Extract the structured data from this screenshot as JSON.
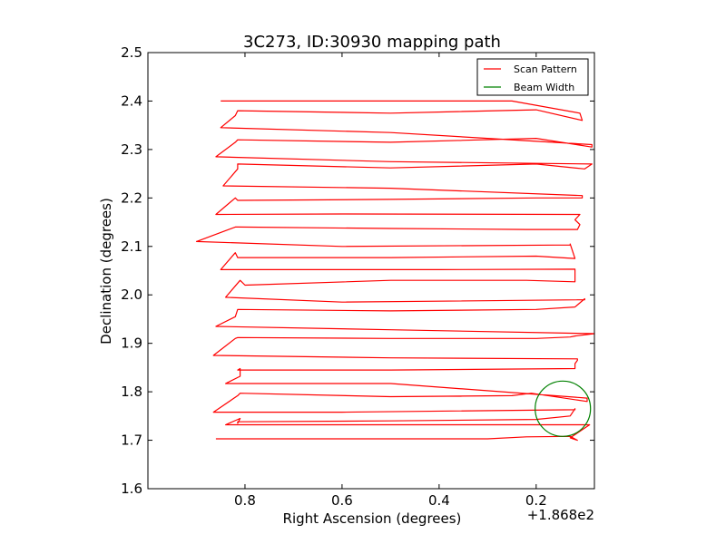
{
  "chart_data": {
    "type": "line",
    "title": "3C273, ID:30930 mapping path",
    "xlabel": "Right Ascension (degrees)",
    "ylabel": "Declination (degrees)",
    "x_offset_label": "+1.868e2",
    "xlim": [
      1.0,
      0.08
    ],
    "ylim": [
      1.6,
      2.5
    ],
    "x_inverted": true,
    "x_ticks": [
      0.8,
      0.6,
      0.4,
      0.2
    ],
    "x_tick_labels": [
      "0.8",
      "0.6",
      "0.4",
      "0.2"
    ],
    "y_ticks": [
      1.6,
      1.7,
      1.8,
      1.9,
      2.0,
      2.1,
      2.2,
      2.3,
      2.4,
      2.5
    ],
    "y_tick_labels": [
      "1.6",
      "1.7",
      "1.8",
      "1.9",
      "2.0",
      "2.1",
      "2.2",
      "2.3",
      "2.4",
      "2.5"
    ],
    "grid": false,
    "legend_position": "top-right",
    "series": [
      {
        "name": "Scan Pattern",
        "color": "#ff0000",
        "points": [
          [
            0.86,
            1.703
          ],
          [
            0.3,
            1.703
          ],
          [
            0.22,
            1.707
          ],
          [
            0.13,
            1.708
          ],
          [
            0.115,
            1.7
          ],
          [
            0.13,
            1.705
          ],
          [
            0.09,
            1.732
          ],
          [
            0.6,
            1.732
          ],
          [
            0.84,
            1.732
          ],
          [
            0.81,
            1.745
          ],
          [
            0.815,
            1.735
          ],
          [
            0.815,
            1.738
          ],
          [
            0.5,
            1.74
          ],
          [
            0.2,
            1.743
          ],
          [
            0.13,
            1.75
          ],
          [
            0.12,
            1.765
          ],
          [
            0.12,
            1.763
          ],
          [
            0.6,
            1.758
          ],
          [
            0.865,
            1.758
          ],
          [
            0.815,
            1.792
          ],
          [
            0.81,
            1.797
          ],
          [
            0.5,
            1.79
          ],
          [
            0.25,
            1.792
          ],
          [
            0.21,
            1.797
          ],
          [
            0.095,
            1.78
          ],
          [
            0.095,
            1.787
          ],
          [
            0.5,
            1.817
          ],
          [
            0.84,
            1.817
          ],
          [
            0.81,
            1.832
          ],
          [
            0.81,
            1.848
          ],
          [
            0.815,
            1.845
          ],
          [
            0.5,
            1.845
          ],
          [
            0.12,
            1.848
          ],
          [
            0.12,
            1.858
          ],
          [
            0.115,
            1.865
          ],
          [
            0.115,
            1.868
          ],
          [
            0.5,
            1.87
          ],
          [
            0.865,
            1.875
          ],
          [
            0.82,
            1.91
          ],
          [
            0.815,
            1.912
          ],
          [
            0.5,
            1.91
          ],
          [
            0.2,
            1.91
          ],
          [
            0.13,
            1.913
          ],
          [
            0.12,
            1.915
          ],
          [
            0.08,
            1.92
          ],
          [
            0.08,
            1.92
          ],
          [
            0.5,
            1.928
          ],
          [
            0.86,
            1.935
          ],
          [
            0.82,
            1.955
          ],
          [
            0.815,
            1.97
          ],
          [
            0.5,
            1.967
          ],
          [
            0.2,
            1.97
          ],
          [
            0.12,
            1.975
          ],
          [
            0.1,
            1.992
          ],
          [
            0.1,
            1.99
          ],
          [
            0.6,
            1.985
          ],
          [
            0.84,
            1.995
          ],
          [
            0.81,
            2.03
          ],
          [
            0.8,
            2.02
          ],
          [
            0.5,
            2.03
          ],
          [
            0.22,
            2.03
          ],
          [
            0.12,
            2.027
          ],
          [
            0.12,
            2.05
          ],
          [
            0.12,
            2.053
          ],
          [
            0.4,
            2.052
          ],
          [
            0.85,
            2.052
          ],
          [
            0.82,
            2.087
          ],
          [
            0.815,
            2.077
          ],
          [
            0.5,
            2.077
          ],
          [
            0.2,
            2.08
          ],
          [
            0.12,
            2.075
          ],
          [
            0.13,
            2.105
          ],
          [
            0.13,
            2.103
          ],
          [
            0.6,
            2.1
          ],
          [
            0.9,
            2.11
          ],
          [
            0.82,
            2.14
          ],
          [
            0.815,
            2.14
          ],
          [
            0.5,
            2.137
          ],
          [
            0.22,
            2.135
          ],
          [
            0.115,
            2.135
          ],
          [
            0.11,
            2.145
          ],
          [
            0.12,
            2.155
          ],
          [
            0.11,
            2.166
          ],
          [
            0.6,
            2.167
          ],
          [
            0.86,
            2.166
          ],
          [
            0.82,
            2.2
          ],
          [
            0.815,
            2.195
          ],
          [
            0.5,
            2.197
          ],
          [
            0.2,
            2.2
          ],
          [
            0.13,
            2.2
          ],
          [
            0.105,
            2.2
          ],
          [
            0.105,
            2.205
          ],
          [
            0.5,
            2.22
          ],
          [
            0.845,
            2.225
          ],
          [
            0.815,
            2.26
          ],
          [
            0.815,
            2.27
          ],
          [
            0.5,
            2.262
          ],
          [
            0.2,
            2.27
          ],
          [
            0.1,
            2.26
          ],
          [
            0.085,
            2.27
          ],
          [
            0.5,
            2.275
          ],
          [
            0.86,
            2.285
          ],
          [
            0.82,
            2.315
          ],
          [
            0.815,
            2.32
          ],
          [
            0.5,
            2.315
          ],
          [
            0.2,
            2.323
          ],
          [
            0.085,
            2.305
          ],
          [
            0.085,
            2.31
          ],
          [
            0.5,
            2.335
          ],
          [
            0.85,
            2.345
          ],
          [
            0.82,
            2.37
          ],
          [
            0.815,
            2.38
          ],
          [
            0.5,
            2.375
          ],
          [
            0.2,
            2.382
          ],
          [
            0.105,
            2.36
          ],
          [
            0.11,
            2.375
          ],
          [
            0.25,
            2.4
          ],
          [
            0.5,
            2.4
          ],
          [
            0.85,
            2.4
          ]
        ]
      },
      {
        "name": "Beam Width",
        "color": "#008000",
        "shape": "circle",
        "center": [
          0.145,
          1.765
        ],
        "radius": 0.057
      }
    ]
  }
}
